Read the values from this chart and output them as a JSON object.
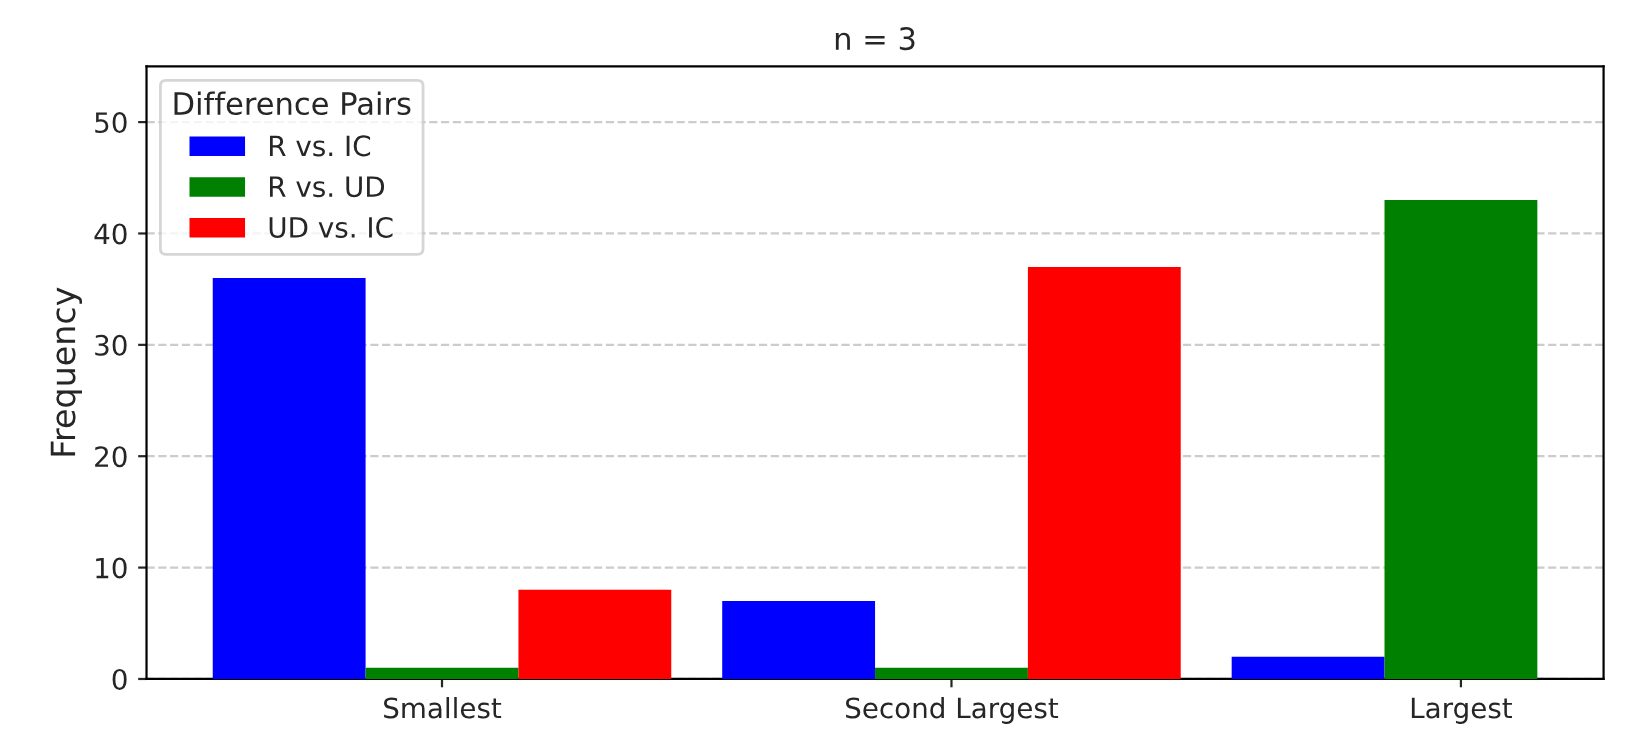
{
  "chart_data": {
    "type": "bar",
    "title": "n = 3",
    "ylabel": "Frequency",
    "legend_title": "Difference Pairs",
    "categories": [
      "Smallest",
      "Second Largest",
      "Largest"
    ],
    "series": [
      {
        "name": "R vs. IC",
        "color": "#0000ff",
        "values": [
          36,
          7,
          2
        ]
      },
      {
        "name": "R vs. UD",
        "color": "#008000",
        "values": [
          1,
          1,
          43
        ]
      },
      {
        "name": "UD vs. IC",
        "color": "#ff0000",
        "values": [
          8,
          37,
          null
        ]
      }
    ],
    "ylim": [
      0,
      55
    ],
    "yticks": [
      0,
      10,
      20,
      30,
      40,
      50
    ],
    "grid": "y",
    "legend": "top left"
  }
}
